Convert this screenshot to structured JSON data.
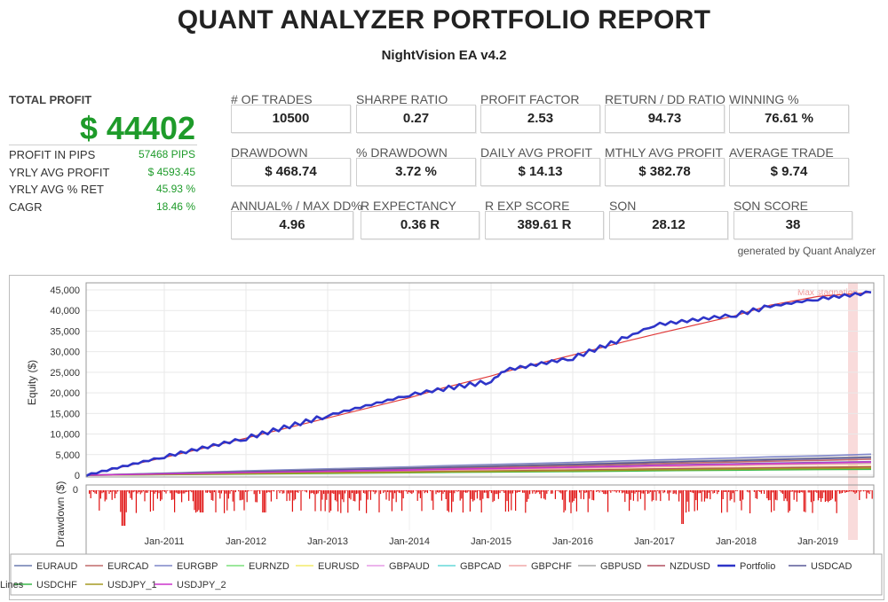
{
  "report": {
    "title": "QUANT ANALYZER PORTFOLIO REPORT",
    "subtitle": "NightVision EA v4.2",
    "generated_by": "generated by Quant Analyzer"
  },
  "summary": {
    "total_profit_label": "TOTAL PROFIT",
    "total_profit_value": "$ 44402",
    "rows": [
      {
        "label": "PROFIT IN PIPS",
        "value": "57468 PIPS"
      },
      {
        "label": "YRLY AVG PROFIT",
        "value": "$ 4593.45"
      },
      {
        "label": "YRLY AVG % RET",
        "value": "45.93 %"
      },
      {
        "label": "CAGR",
        "value": "18.46 %"
      }
    ]
  },
  "stats": [
    {
      "label": "# OF TRADES",
      "value": "10500"
    },
    {
      "label": "SHARPE RATIO",
      "value": "0.27"
    },
    {
      "label": "PROFIT FACTOR",
      "value": "2.53"
    },
    {
      "label": "RETURN / DD RATIO",
      "value": "94.73"
    },
    {
      "label": "WINNING %",
      "value": "76.61 %"
    },
    {
      "label": "DRAWDOWN",
      "value": "$ 468.74"
    },
    {
      "label": "% DRAWDOWN",
      "value": "3.72 %"
    },
    {
      "label": "DAILY AVG PROFIT",
      "value": "$ 14.13"
    },
    {
      "label": "MTHLY AVG PROFIT",
      "value": "$ 382.78"
    },
    {
      "label": "AVERAGE TRADE",
      "value": "$ 9.74"
    },
    {
      "label": "ANNUAL% / MAX DD%",
      "value": "4.96"
    },
    {
      "label": "R EXPECTANCY",
      "value": "0.36 R"
    },
    {
      "label": "R EXP SCORE",
      "value": "389.61 R"
    },
    {
      "label": "SQN",
      "value": "28.12"
    },
    {
      "label": "SQN SCORE",
      "value": "38"
    }
  ],
  "colors": {
    "accent_green": "#1e9b2a",
    "portfolio_line": "#2e34c8",
    "lines_trend": "#e03a3a",
    "drawdown_bars": "#e01010",
    "max_stagnation_band": "#f8d5d5"
  },
  "chart_data": {
    "type": "line",
    "ylabel": "Equity ($)",
    "y_ticks": [
      "45,000",
      "40,000",
      "35,000",
      "30,000",
      "25,000",
      "20,000",
      "15,000",
      "10,000",
      "5,000",
      "0"
    ],
    "ylim": [
      0,
      45000
    ],
    "x_ticks": [
      "Jan-2011",
      "Jan-2012",
      "Jan-2013",
      "Jan-2014",
      "Jan-2015",
      "Jan-2016",
      "Jan-2017",
      "Jan-2018",
      "Jan-2019"
    ],
    "annotation": "Max stagnation",
    "drawdown_label": "Drawdown ($)",
    "drawdown_zero_tick": "0",
    "grid": true,
    "legend_position": "bottom",
    "x_dates": [
      "2010-03",
      "2011-01",
      "2012-01",
      "2013-01",
      "2014-01",
      "2014-06",
      "2015-01",
      "2015-03",
      "2016-01",
      "2016-09",
      "2017-01",
      "2018-01",
      "2018-06",
      "2019-01",
      "2019-08"
    ],
    "series": [
      {
        "name": "EURAUD",
        "color": "#6c7cb0",
        "values": [
          0,
          350,
          700,
          1000,
          1350,
          1500,
          1650,
          1700,
          2000,
          2300,
          2450,
          2800,
          2950,
          3100,
          3300
        ]
      },
      {
        "name": "EURCAD",
        "color": "#c06a6a",
        "values": [
          0,
          380,
          750,
          1100,
          1500,
          1700,
          1900,
          1950,
          2300,
          2650,
          2800,
          3200,
          3400,
          3600,
          3900
        ]
      },
      {
        "name": "EURGBP",
        "color": "#7f86c9",
        "values": [
          0,
          500,
          1050,
          1550,
          2050,
          2300,
          2600,
          2700,
          3100,
          3500,
          3700,
          4200,
          4450,
          4700,
          5100
        ]
      },
      {
        "name": "EURNZD",
        "color": "#7ce07c",
        "values": [
          0,
          250,
          450,
          650,
          850,
          950,
          1050,
          1100,
          1250,
          1450,
          1550,
          1750,
          1850,
          1950,
          2100
        ]
      },
      {
        "name": "EURUSD",
        "color": "#f3ec6a",
        "values": [
          0,
          270,
          500,
          700,
          900,
          1000,
          1100,
          1150,
          1300,
          1500,
          1600,
          1800,
          1900,
          2000,
          2200
        ]
      },
      {
        "name": "GBPAUD",
        "color": "#e59be5",
        "values": [
          0,
          330,
          650,
          950,
          1250,
          1400,
          1550,
          1600,
          1850,
          2100,
          2250,
          2550,
          2700,
          2850,
          3050
        ]
      },
      {
        "name": "GBPCAD",
        "color": "#66d9d9",
        "values": [
          0,
          300,
          600,
          900,
          1200,
          1350,
          1500,
          1550,
          1800,
          2050,
          2200,
          2500,
          2650,
          2800,
          3000
        ]
      },
      {
        "name": "GBPCHF",
        "color": "#f0a8a8",
        "values": [
          0,
          280,
          560,
          830,
          1100,
          1250,
          1400,
          1450,
          1680,
          1900,
          2050,
          2330,
          2470,
          2600,
          2800
        ]
      },
      {
        "name": "GBPUSD",
        "color": "#a8a8a8",
        "values": [
          0,
          450,
          900,
          1350,
          1800,
          2050,
          2300,
          2400,
          2750,
          3100,
          3300,
          3750,
          3950,
          4200,
          4500
        ]
      },
      {
        "name": "NZDUSD",
        "color": "#b25060",
        "values": [
          0,
          200,
          420,
          620,
          820,
          920,
          1020,
          1070,
          1250,
          1420,
          1520,
          1720,
          1820,
          1920,
          2050
        ]
      },
      {
        "name": "Portfolio",
        "color": "#2e34c8",
        "values": [
          0,
          4500,
          9000,
          14500,
          19500,
          21000,
          22800,
          25500,
          28500,
          33500,
          36500,
          39000,
          41000,
          42800,
          44402
        ]
      },
      {
        "name": "USDCAD",
        "color": "#5a5a99",
        "values": [
          0,
          430,
          850,
          1280,
          1700,
          1900,
          2150,
          2250,
          2600,
          2950,
          3150,
          3550,
          3750,
          4000,
          4300
        ]
      },
      {
        "name": "USDCHF",
        "color": "#3ab84a",
        "values": [
          0,
          150,
          300,
          450,
          600,
          680,
          760,
          790,
          900,
          1020,
          1090,
          1230,
          1300,
          1370,
          1450
        ]
      },
      {
        "name": "USDJPY_1",
        "color": "#a59a22",
        "values": [
          0,
          180,
          360,
          540,
          720,
          810,
          900,
          940,
          1080,
          1220,
          1300,
          1470,
          1550,
          1640,
          1750
        ]
      },
      {
        "name": "USDJPY_2",
        "color": "#cc33cc",
        "values": [
          0,
          320,
          640,
          960,
          1280,
          1440,
          1600,
          1660,
          1920,
          2180,
          2340,
          2660,
          2820,
          2980,
          3200
        ]
      },
      {
        "name": "Lines",
        "color": "#e03a3a",
        "values": [
          0,
          4300,
          9000,
          13900,
          18800,
          21200,
          24100,
          25100,
          29200,
          32600,
          34200,
          38800,
          41300,
          43400,
          44402
        ]
      }
    ]
  }
}
